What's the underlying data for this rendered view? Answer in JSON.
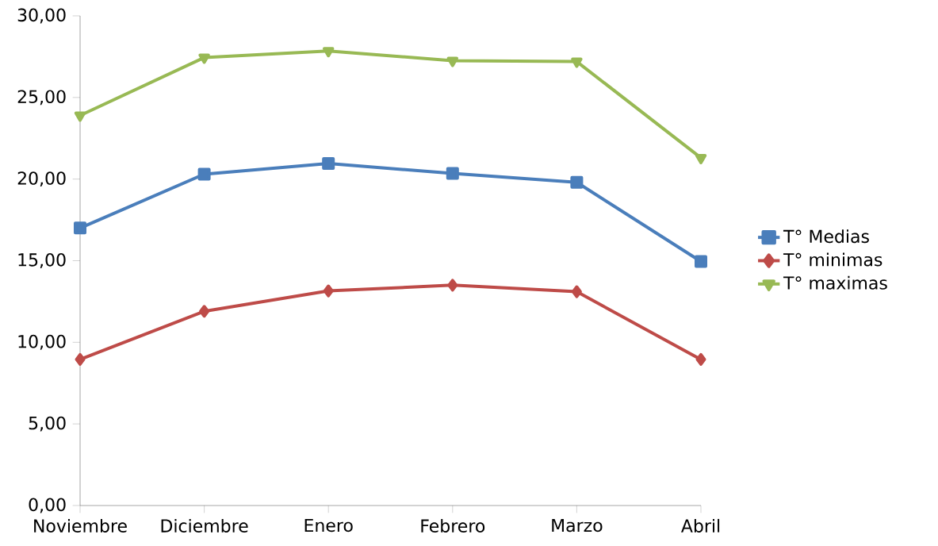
{
  "chart_data": {
    "type": "line",
    "categories": [
      "Noviembre",
      "Diciembre",
      "Enero",
      "Febrero",
      "Marzo",
      "Abril"
    ],
    "series": [
      {
        "name": "T° Medias",
        "color": "#4a7ebb",
        "marker": "square",
        "values": [
          17.0,
          20.3,
          20.95,
          20.35,
          19.8,
          14.95
        ]
      },
      {
        "name": "T° minimas",
        "color": "#be4b48",
        "marker": "diamond",
        "values": [
          8.95,
          11.9,
          13.15,
          13.5,
          13.1,
          8.95
        ]
      },
      {
        "name": "T° maximas",
        "color": "#98b954",
        "marker": "triangle",
        "values": [
          23.9,
          27.45,
          27.85,
          27.25,
          27.2,
          21.3
        ]
      }
    ],
    "ylim": [
      0,
      30
    ],
    "yticks": [
      {
        "value": 0,
        "label": "0,00"
      },
      {
        "value": 5,
        "label": "5,00"
      },
      {
        "value": 10,
        "label": "10,00"
      },
      {
        "value": 15,
        "label": "15,00"
      },
      {
        "value": 20,
        "label": "20,00"
      },
      {
        "value": 25,
        "label": "25,00"
      },
      {
        "value": 30,
        "label": "30,00"
      }
    ],
    "grid": false,
    "legend": "right"
  }
}
